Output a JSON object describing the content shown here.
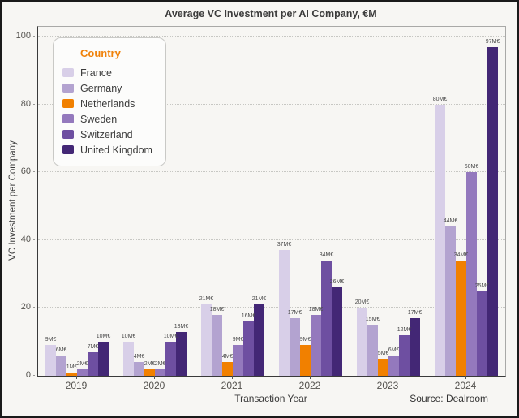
{
  "chart_data": {
    "type": "bar",
    "title": "Average VC Investment per AI Company, €M",
    "xlabel": "Transaction Year",
    "ylabel": "VC Investment per Company",
    "source": "Source: Dealroom",
    "legend_title": "Country",
    "legend_position": "upper-left-inside",
    "grid": "horizontal-dotted",
    "ylim": [
      0,
      100
    ],
    "yticks": [
      0,
      20,
      40,
      60,
      80,
      100
    ],
    "bar_label_suffix": "M€",
    "categories": [
      "2019",
      "2020",
      "2021",
      "2022",
      "2023",
      "2024"
    ],
    "series": [
      {
        "name": "France",
        "color": "#d8cfe8",
        "values": [
          9,
          10,
          21,
          37,
          20,
          80
        ]
      },
      {
        "name": "Germany",
        "color": "#b3a3d0",
        "values": [
          6,
          4,
          18,
          17,
          15,
          44
        ]
      },
      {
        "name": "Netherlands",
        "color": "#f18000",
        "values": [
          1,
          2,
          4,
          9,
          5,
          34
        ]
      },
      {
        "name": "Sweden",
        "color": "#9479bd",
        "values": [
          2,
          2,
          9,
          18,
          6,
          60
        ]
      },
      {
        "name": "Switzerland",
        "color": "#6e4fa1",
        "values": [
          7,
          10,
          16,
          34,
          12,
          25
        ]
      },
      {
        "name": "United Kingdom",
        "color": "#432775",
        "values": [
          10,
          13,
          21,
          26,
          17,
          97
        ]
      }
    ],
    "colors": {
      "background": "#f7f6f3",
      "frame_border": "#1a1a1a",
      "legend_title": "#f0820a",
      "axis_line": "#3a3a3a"
    }
  }
}
